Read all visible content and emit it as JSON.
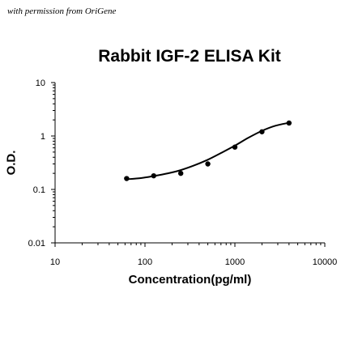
{
  "watermark": "with permission from OriGene",
  "chart_data": {
    "type": "scatter",
    "title": "Rabbit IGF-2 ELISA Kit",
    "xlabel": "Concentration(pg/ml)",
    "ylabel": "O.D.",
    "x_scale": "log",
    "y_scale": "log",
    "xlim": [
      10,
      10000
    ],
    "ylim": [
      0.01,
      10
    ],
    "x_ticks": [
      10,
      100,
      1000,
      10000
    ],
    "x_tick_labels": [
      "10",
      "100",
      "1000",
      "10000"
    ],
    "y_ticks": [
      0.01,
      0.1,
      1,
      10
    ],
    "y_tick_labels": [
      "0.01",
      "0.1",
      "1",
      "10"
    ],
    "grid": false,
    "legend": "none",
    "series": [
      {
        "x": [
          62.5,
          125,
          250,
          500,
          1000,
          2000,
          4000
        ],
        "y": [
          0.16,
          0.18,
          0.2,
          0.3,
          0.62,
          1.2,
          1.75
        ]
      }
    ],
    "fit_curve": {
      "x": [
        62.5,
        90,
        125,
        180,
        250,
        350,
        500,
        700,
        1000,
        1400,
        2000,
        2800,
        4000
      ],
      "y": [
        0.155,
        0.163,
        0.178,
        0.2,
        0.23,
        0.28,
        0.36,
        0.48,
        0.66,
        0.92,
        1.25,
        1.55,
        1.77
      ]
    },
    "colors": {
      "marker": "#000000",
      "line": "#000000",
      "axis": "#000000"
    }
  }
}
